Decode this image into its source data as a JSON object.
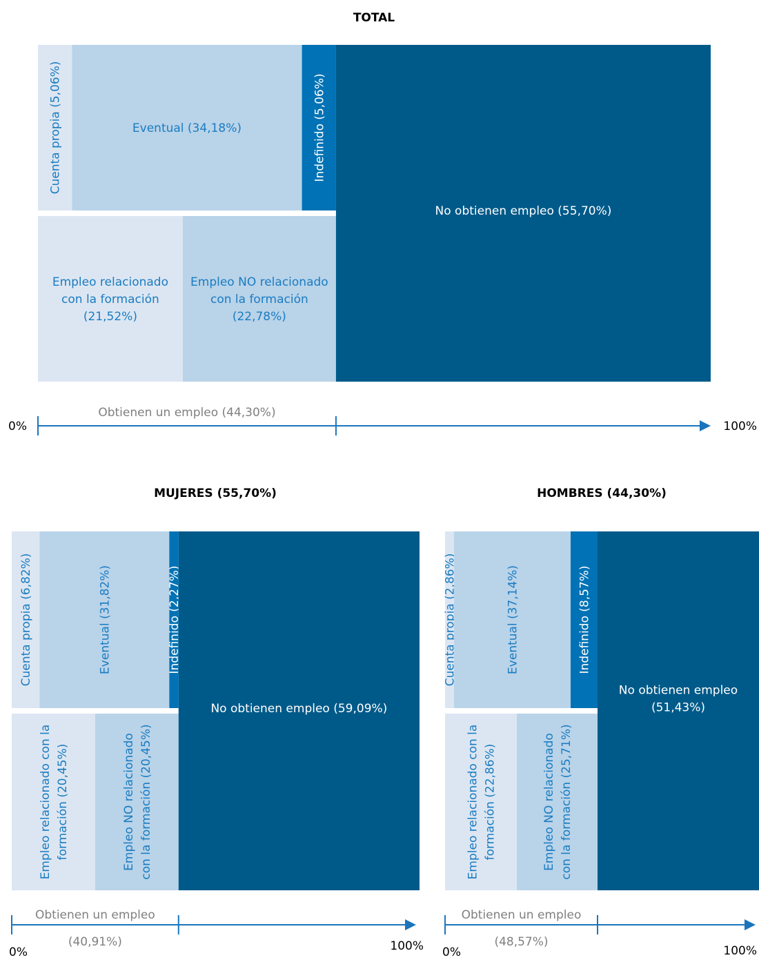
{
  "panels": [
    {
      "title": "TOTAL",
      "employed": 44.3,
      "contract": [
        {
          "label": [
            "Cuenta propia (5,06%)"
          ],
          "value": 5.06
        },
        {
          "label": [
            "Eventual (34,18%)"
          ],
          "value": 34.18
        },
        {
          "label": [
            "Indefinido (5,06%)"
          ],
          "value": 5.06
        }
      ],
      "relation": [
        {
          "label": [
            "Empleo relacionado",
            "con la formación",
            "(21,52%)"
          ],
          "value": 21.52
        },
        {
          "label": [
            "Empleo NO relacionado",
            "con la formación",
            "(22,78%)"
          ],
          "value": 22.78
        }
      ],
      "unemployed": {
        "label": [
          "No obtienen empleo (55,70%)"
        ],
        "value": 55.7
      },
      "axis_label": [
        "Obtienen un empleo (44,30%)"
      ],
      "axis_start": "0%",
      "axis_end": "100%"
    },
    {
      "title": "MUJERES (55,70%)",
      "employed": 40.91,
      "contract": [
        {
          "label": [
            "Cuenta propia (6,82%)"
          ],
          "value": 6.82
        },
        {
          "label": [
            "Eventual (31,82%)"
          ],
          "value": 31.82
        },
        {
          "label": [
            "Indefinido (2,27%)"
          ],
          "value": 2.27
        }
      ],
      "relation": [
        {
          "label": [
            "Empleo relacionado con la",
            "formación (20,45%)"
          ],
          "value": 20.45
        },
        {
          "label": [
            "Empleo NO relacionado",
            "con la formación (20,45%)"
          ],
          "value": 20.45
        }
      ],
      "unemployed": {
        "label": [
          "No obtienen empleo (59,09%)"
        ],
        "value": 59.09
      },
      "axis_label": [
        "Obtienen un empleo",
        "(40,91%)"
      ],
      "axis_start": "0%",
      "axis_end": "100%"
    },
    {
      "title": "HOMBRES (44,30%)",
      "employed": 48.57,
      "contract": [
        {
          "label": [
            "Cuenta propia (2,86%)"
          ],
          "value": 2.86
        },
        {
          "label": [
            "Eventual (37,14%)"
          ],
          "value": 37.14
        },
        {
          "label": [
            "Indefinido (8,57%)"
          ],
          "value": 8.57
        }
      ],
      "relation": [
        {
          "label": [
            "Empleo relacionado con la",
            "formación (22,86%)"
          ],
          "value": 22.86
        },
        {
          "label": [
            "Empleo NO relacionado",
            "con la formación (25,71%)"
          ],
          "value": 25.71
        }
      ],
      "unemployed": {
        "label": [
          "No obtienen empleo",
          "(51,43%)"
        ],
        "value": 51.43
      },
      "axis_label": [
        "Obtienen un empleo",
        "(48,57%)"
      ],
      "axis_start": "0%",
      "axis_end": "100%"
    }
  ]
}
